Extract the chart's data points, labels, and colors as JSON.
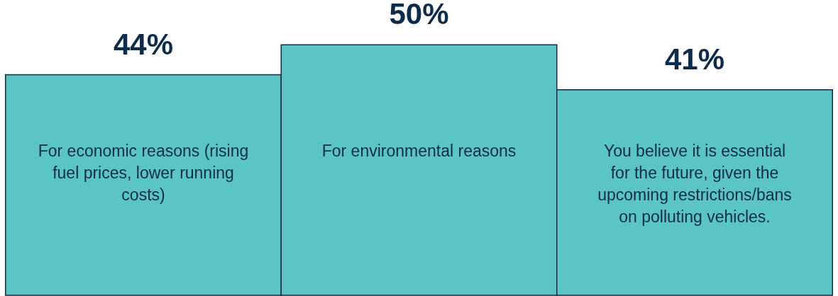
{
  "chart_data": {
    "type": "bar",
    "data_labels": true,
    "categories": [
      "For economic reasons (rising fuel prices, lower running costs)",
      "For environmental reasons",
      "You believe it is essential for the future, given the upcoming restrictions/bans on polluting vehicles."
    ],
    "values": [
      44,
      50,
      41
    ],
    "color": "#5bc5c3",
    "value_labels": [
      "44%",
      "50%",
      "41%"
    ]
  }
}
